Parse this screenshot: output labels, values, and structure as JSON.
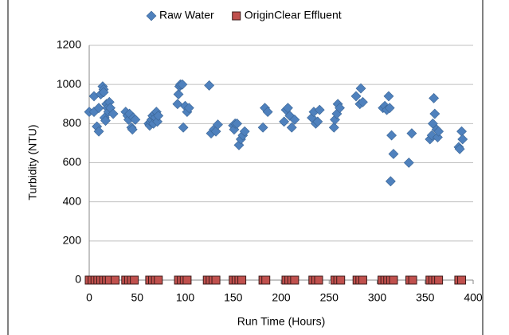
{
  "chart_data": {
    "type": "scatter",
    "xlabel": "Run Time (Hours)",
    "ylabel": "Turbidity (NTU)",
    "xlim": [
      0,
      400
    ],
    "xticks": [
      0,
      50,
      100,
      150,
      200,
      250,
      300,
      350,
      400
    ],
    "ylim": [
      0,
      1200
    ],
    "yticks": [
      0,
      200,
      400,
      600,
      800,
      1000,
      1200
    ],
    "grid": true,
    "legend": "top",
    "series": [
      {
        "name": "Raw Water",
        "color": "#4f81bd",
        "marker": "diamond",
        "x": [
          0,
          5,
          5,
          8,
          10,
          10,
          12,
          14,
          15,
          15,
          16,
          17,
          18,
          19,
          20,
          21,
          22,
          25,
          38,
          40,
          41,
          42,
          44,
          45,
          46,
          48,
          62,
          63,
          64,
          65,
          66,
          67,
          68,
          69,
          70,
          71,
          72,
          92,
          93,
          94,
          95,
          97,
          98,
          100,
          102,
          104,
          125,
          127,
          130,
          132,
          134,
          150,
          151,
          152,
          154,
          156,
          158,
          160,
          162,
          181,
          183,
          186,
          203,
          205,
          207,
          209,
          211,
          214,
          232,
          234,
          236,
          238,
          240,
          255,
          256,
          258,
          259,
          261,
          278,
          282,
          283,
          285,
          306,
          308,
          310,
          312,
          313,
          314,
          315,
          317,
          333,
          336,
          355,
          357,
          358,
          359,
          360,
          362,
          363,
          364,
          385,
          386,
          388,
          389
        ],
        "values": [
          860,
          940,
          860,
          785,
          760,
          880,
          950,
          990,
          975,
          960,
          830,
          815,
          900,
          880,
          860,
          910,
          880,
          850,
          860,
          840,
          820,
          850,
          780,
          770,
          830,
          820,
          800,
          790,
          810,
          820,
          840,
          800,
          850,
          830,
          860,
          810,
          840,
          900,
          950,
          990,
          1000,
          1000,
          780,
          890,
          860,
          880,
          995,
          750,
          770,
          760,
          795,
          790,
          770,
          800,
          800,
          690,
          720,
          740,
          760,
          780,
          880,
          860,
          810,
          870,
          880,
          840,
          780,
          820,
          830,
          860,
          800,
          810,
          870,
          780,
          820,
          850,
          900,
          880,
          940,
          900,
          980,
          910,
          880,
          890,
          870,
          940,
          880,
          505,
          740,
          645,
          600,
          750,
          720,
          740,
          800,
          930,
          850,
          770,
          730,
          760,
          680,
          670,
          760,
          720
        ]
      },
      {
        "name": "OriginClear Effluent",
        "color": "#c0504d",
        "marker": "square",
        "x": [
          0,
          3,
          6,
          9,
          12,
          15,
          18,
          21,
          27,
          38,
          41,
          44,
          47,
          63,
          66,
          69,
          72,
          93,
          96,
          99,
          102,
          123,
          126,
          129,
          132,
          150,
          153,
          156,
          159,
          181,
          184,
          205,
          208,
          211,
          214,
          233,
          236,
          239,
          256,
          259,
          262,
          279,
          282,
          285,
          305,
          308,
          311,
          314,
          317,
          334,
          337,
          355,
          358,
          361,
          364,
          385,
          388
        ],
        "values": [
          0,
          0,
          0,
          0,
          0,
          0,
          0,
          0,
          0,
          0,
          0,
          0,
          0,
          0,
          0,
          0,
          0,
          0,
          0,
          0,
          0,
          0,
          0,
          0,
          0,
          0,
          0,
          0,
          0,
          0,
          0,
          0,
          0,
          0,
          0,
          0,
          0,
          0,
          0,
          0,
          0,
          0,
          0,
          0,
          0,
          0,
          0,
          0,
          0,
          0,
          0,
          0,
          0,
          0,
          0,
          0,
          0
        ]
      }
    ]
  }
}
